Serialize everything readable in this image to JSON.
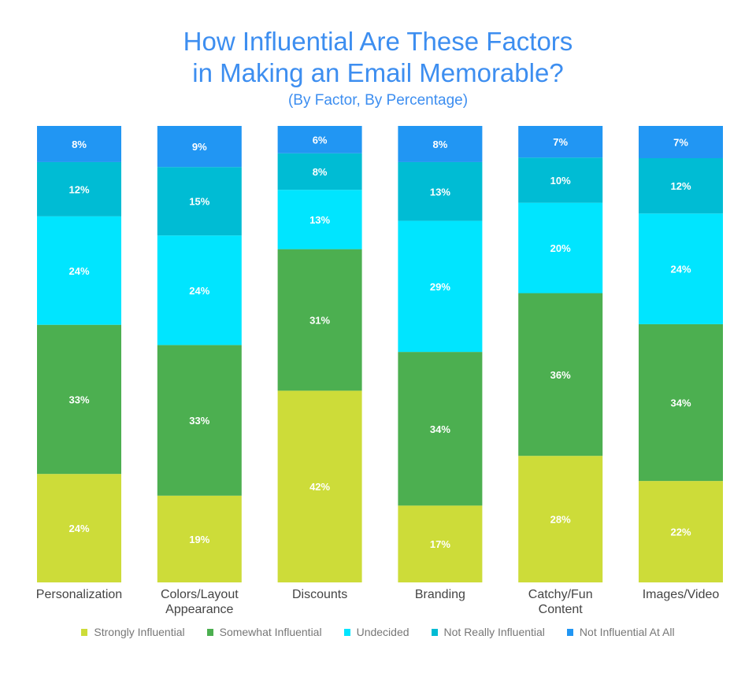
{
  "chart_data": {
    "type": "bar",
    "stacked": true,
    "title_lines": [
      "How Influential Are These Factors",
      "in Making an Email Memorable?"
    ],
    "subtitle": "(By Factor, By Percentage)",
    "categories": [
      [
        "Personalization"
      ],
      [
        "Colors/Layout",
        "Appearance"
      ],
      [
        "Discounts"
      ],
      [
        "Branding"
      ],
      [
        "Catchy/Fun",
        "Content"
      ],
      [
        "Images/Video"
      ]
    ],
    "series": [
      {
        "name": "Strongly Influential",
        "color": "#cddc39",
        "values": [
          24,
          19,
          42,
          17,
          28,
          22
        ]
      },
      {
        "name": "Somewhat Influential",
        "color": "#4caf50",
        "values": [
          33,
          33,
          31,
          34,
          36,
          34
        ]
      },
      {
        "name": "Undecided",
        "color": "#00e5ff",
        "values": [
          24,
          24,
          13,
          29,
          20,
          24
        ]
      },
      {
        "name": "Not Really Influential",
        "color": "#00bcd4",
        "values": [
          12,
          15,
          8,
          13,
          10,
          12
        ]
      },
      {
        "name": "Not Influential At All",
        "color": "#2196f3",
        "values": [
          8,
          9,
          6,
          8,
          7,
          7
        ]
      }
    ],
    "value_suffix": "%",
    "ylim": [
      0,
      100
    ],
    "grid": false,
    "legend_position": "bottom"
  }
}
